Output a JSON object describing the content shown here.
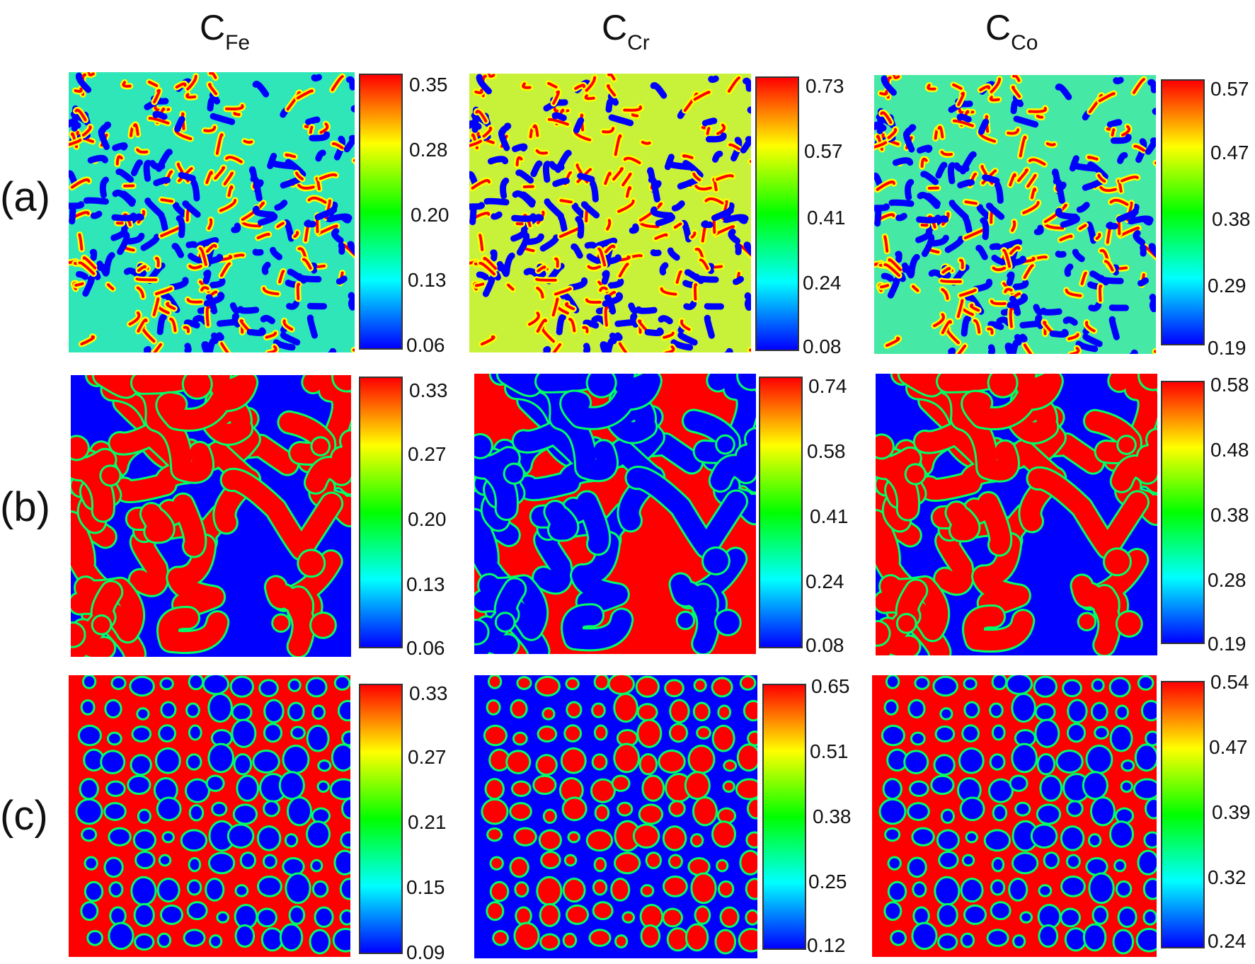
{
  "columns": [
    {
      "base": "C",
      "subscript": "Fe"
    },
    {
      "base": "C",
      "subscript": "Cr"
    },
    {
      "base": "C",
      "subscript": "Co"
    }
  ],
  "rows": [
    {
      "label": "(a)",
      "colorbars": [
        {
          "ticks": [
            "0.35",
            "0.28",
            "0.20",
            "0.13",
            "0.06"
          ]
        },
        {
          "ticks": [
            "0.73",
            "0.57",
            "0.41",
            "0.24",
            "0.08"
          ]
        },
        {
          "ticks": [
            "0.57",
            "0.47",
            "0.38",
            "0.29",
            "0.19"
          ]
        }
      ]
    },
    {
      "label": "(b)",
      "colorbars": [
        {
          "ticks": [
            "0.33",
            "0.27",
            "0.20",
            "0.13",
            "0.06"
          ]
        },
        {
          "ticks": [
            "0.74",
            "0.58",
            "0.41",
            "0.24",
            "0.08"
          ]
        },
        {
          "ticks": [
            "0.58",
            "0.48",
            "0.38",
            "0.28",
            "0.19"
          ]
        }
      ]
    },
    {
      "label": "(c)",
      "colorbars": [
        {
          "ticks": [
            "0.33",
            "0.27",
            "0.21",
            "0.15",
            "0.09"
          ]
        },
        {
          "ticks": [
            "0.65",
            "0.51",
            "0.38",
            "0.25",
            "0.12"
          ]
        },
        {
          "ticks": [
            "0.54",
            "0.47",
            "0.39",
            "0.32",
            "0.24"
          ]
        }
      ]
    }
  ],
  "colors": {
    "low": "#0000ff",
    "mid_low": "#00ffff",
    "mid": "#00ff00",
    "mid_high": "#ffff00",
    "high": "#ff0000"
  }
}
